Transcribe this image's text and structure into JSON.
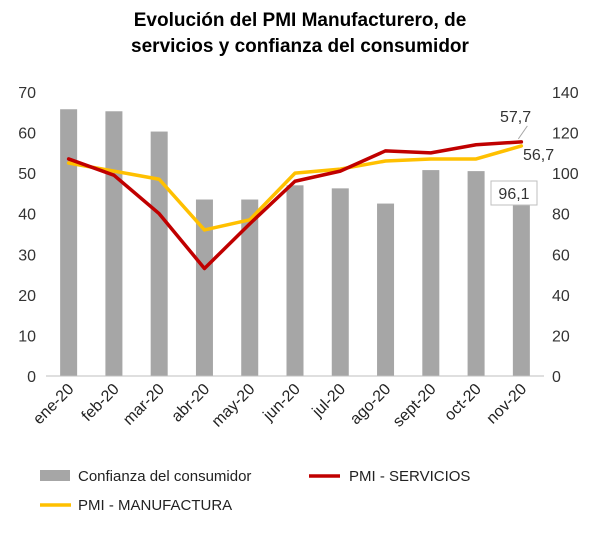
{
  "chart_data": {
    "type": "bar",
    "title_line1": "Evolución del PMI Manufacturero, de",
    "title_line2": "servicios y confianza del consumidor",
    "categories": [
      "ene-20",
      "feb-20",
      "mar-20",
      "abr-20",
      "may-20",
      "jun-20",
      "jul-20",
      "ago-20",
      "sept-20",
      "oct-20",
      "nov-20"
    ],
    "ylim_left": [
      0,
      70
    ],
    "yticks_left": [
      0,
      10,
      20,
      30,
      40,
      50,
      60,
      70
    ],
    "ylim_right": [
      0,
      140
    ],
    "yticks_right": [
      0,
      20,
      40,
      60,
      80,
      100,
      120,
      140
    ],
    "series": [
      {
        "name": "Confianza del consumidor",
        "type": "bar",
        "axis": "right",
        "color": "#a6a6a6",
        "values": [
          131.5,
          130.5,
          120.5,
          87.0,
          87.0,
          94.0,
          92.5,
          85.0,
          101.5,
          101.0,
          96.1
        ]
      },
      {
        "name": "PMI - SERVICIOS",
        "type": "line",
        "axis": "left",
        "color": "#c00000",
        "values": [
          53.5,
          49.5,
          40.0,
          26.5,
          37.5,
          48.0,
          50.5,
          55.5,
          55.0,
          57.0,
          57.7
        ]
      },
      {
        "name": "PMI - MANUFACTURA",
        "type": "line",
        "axis": "left",
        "color": "#ffc000",
        "values": [
          52.5,
          50.5,
          48.5,
          36.0,
          38.5,
          50.0,
          51.0,
          53.0,
          53.5,
          53.5,
          56.7
        ]
      }
    ],
    "annotations": {
      "servicios_last": "57,7",
      "manufactura_last": "56,7",
      "confianza_last": "96,1"
    },
    "legend": [
      "Confianza del consumidor",
      "PMI - SERVICIOS",
      "PMI - MANUFACTURA"
    ],
    "grid": false
  }
}
